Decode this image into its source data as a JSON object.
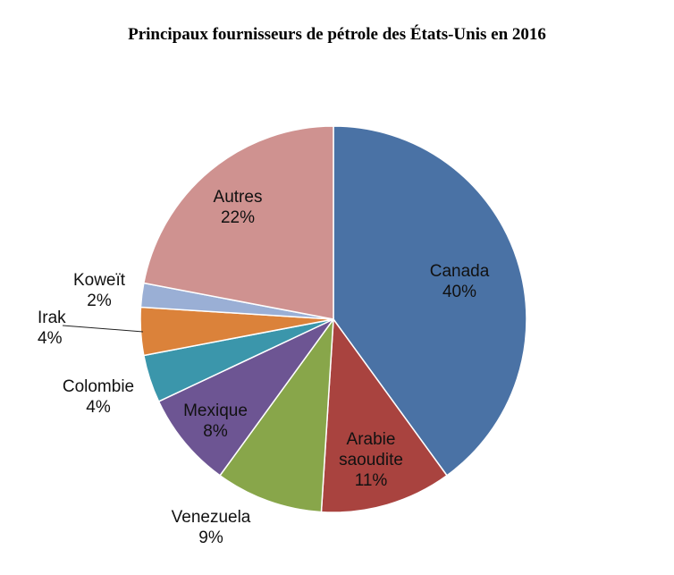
{
  "chart_data": {
    "type": "pie",
    "title": "Principaux fournisseurs de pétrole des États-Unis en 2016",
    "slices": [
      {
        "name": "Canada",
        "value": 40,
        "label": "40%",
        "color": "#4a72a5"
      },
      {
        "name": "Arabie saoudite",
        "value": 11,
        "label": "11%",
        "color": "#a9433f"
      },
      {
        "name": "Venezuela",
        "value": 9,
        "label": "9%",
        "color": "#88a64a"
      },
      {
        "name": "Mexique",
        "value": 8,
        "label": "8%",
        "color": "#6d5593"
      },
      {
        "name": "Colombie",
        "value": 4,
        "label": "4%",
        "color": "#3b96ab"
      },
      {
        "name": "Irak",
        "value": 4,
        "label": "4%",
        "color": "#db823a"
      },
      {
        "name": "Koweït",
        "value": 2,
        "label": "2%",
        "color": "#9aafd5"
      },
      {
        "name": "Autres",
        "value": 22,
        "label": "22%",
        "color": "#cf9290"
      }
    ]
  }
}
